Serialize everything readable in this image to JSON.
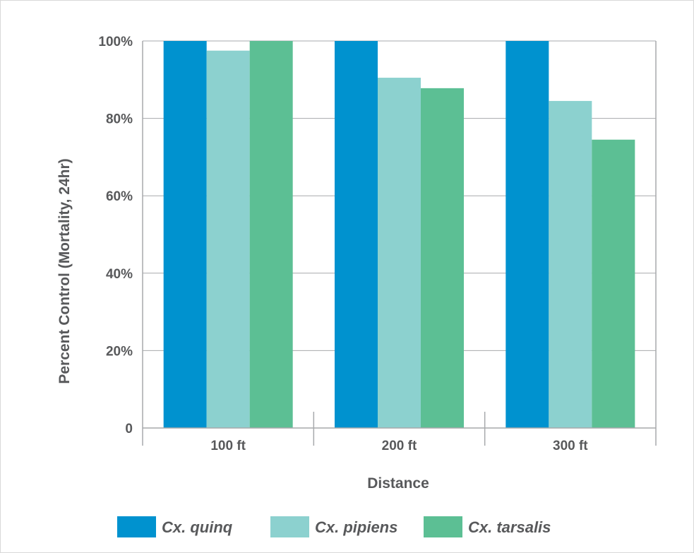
{
  "chart_data": {
    "type": "bar",
    "title": "",
    "xlabel": "Distance",
    "ylabel": "Percent Control (Mortality, 24hr)",
    "categories": [
      "100 ft",
      "200 ft",
      "300 ft"
    ],
    "series": [
      {
        "name": "Cx. quinq",
        "color": "#0092cf",
        "values": [
          100,
          100,
          100
        ]
      },
      {
        "name": "Cx. pipiens",
        "color": "#8cd1cf",
        "values": [
          97.5,
          90.5,
          84.5
        ]
      },
      {
        "name": "Cx. tarsalis",
        "color": "#5cbf94",
        "values": [
          100,
          87.8,
          74.5
        ]
      }
    ],
    "ylim": [
      0,
      100
    ],
    "yticks": [
      0,
      20,
      40,
      60,
      80,
      100
    ],
    "ytick_labels": [
      "0",
      "20%",
      "40%",
      "60%",
      "80%",
      "100%"
    ],
    "grid": true,
    "legend_position": "bottom"
  }
}
